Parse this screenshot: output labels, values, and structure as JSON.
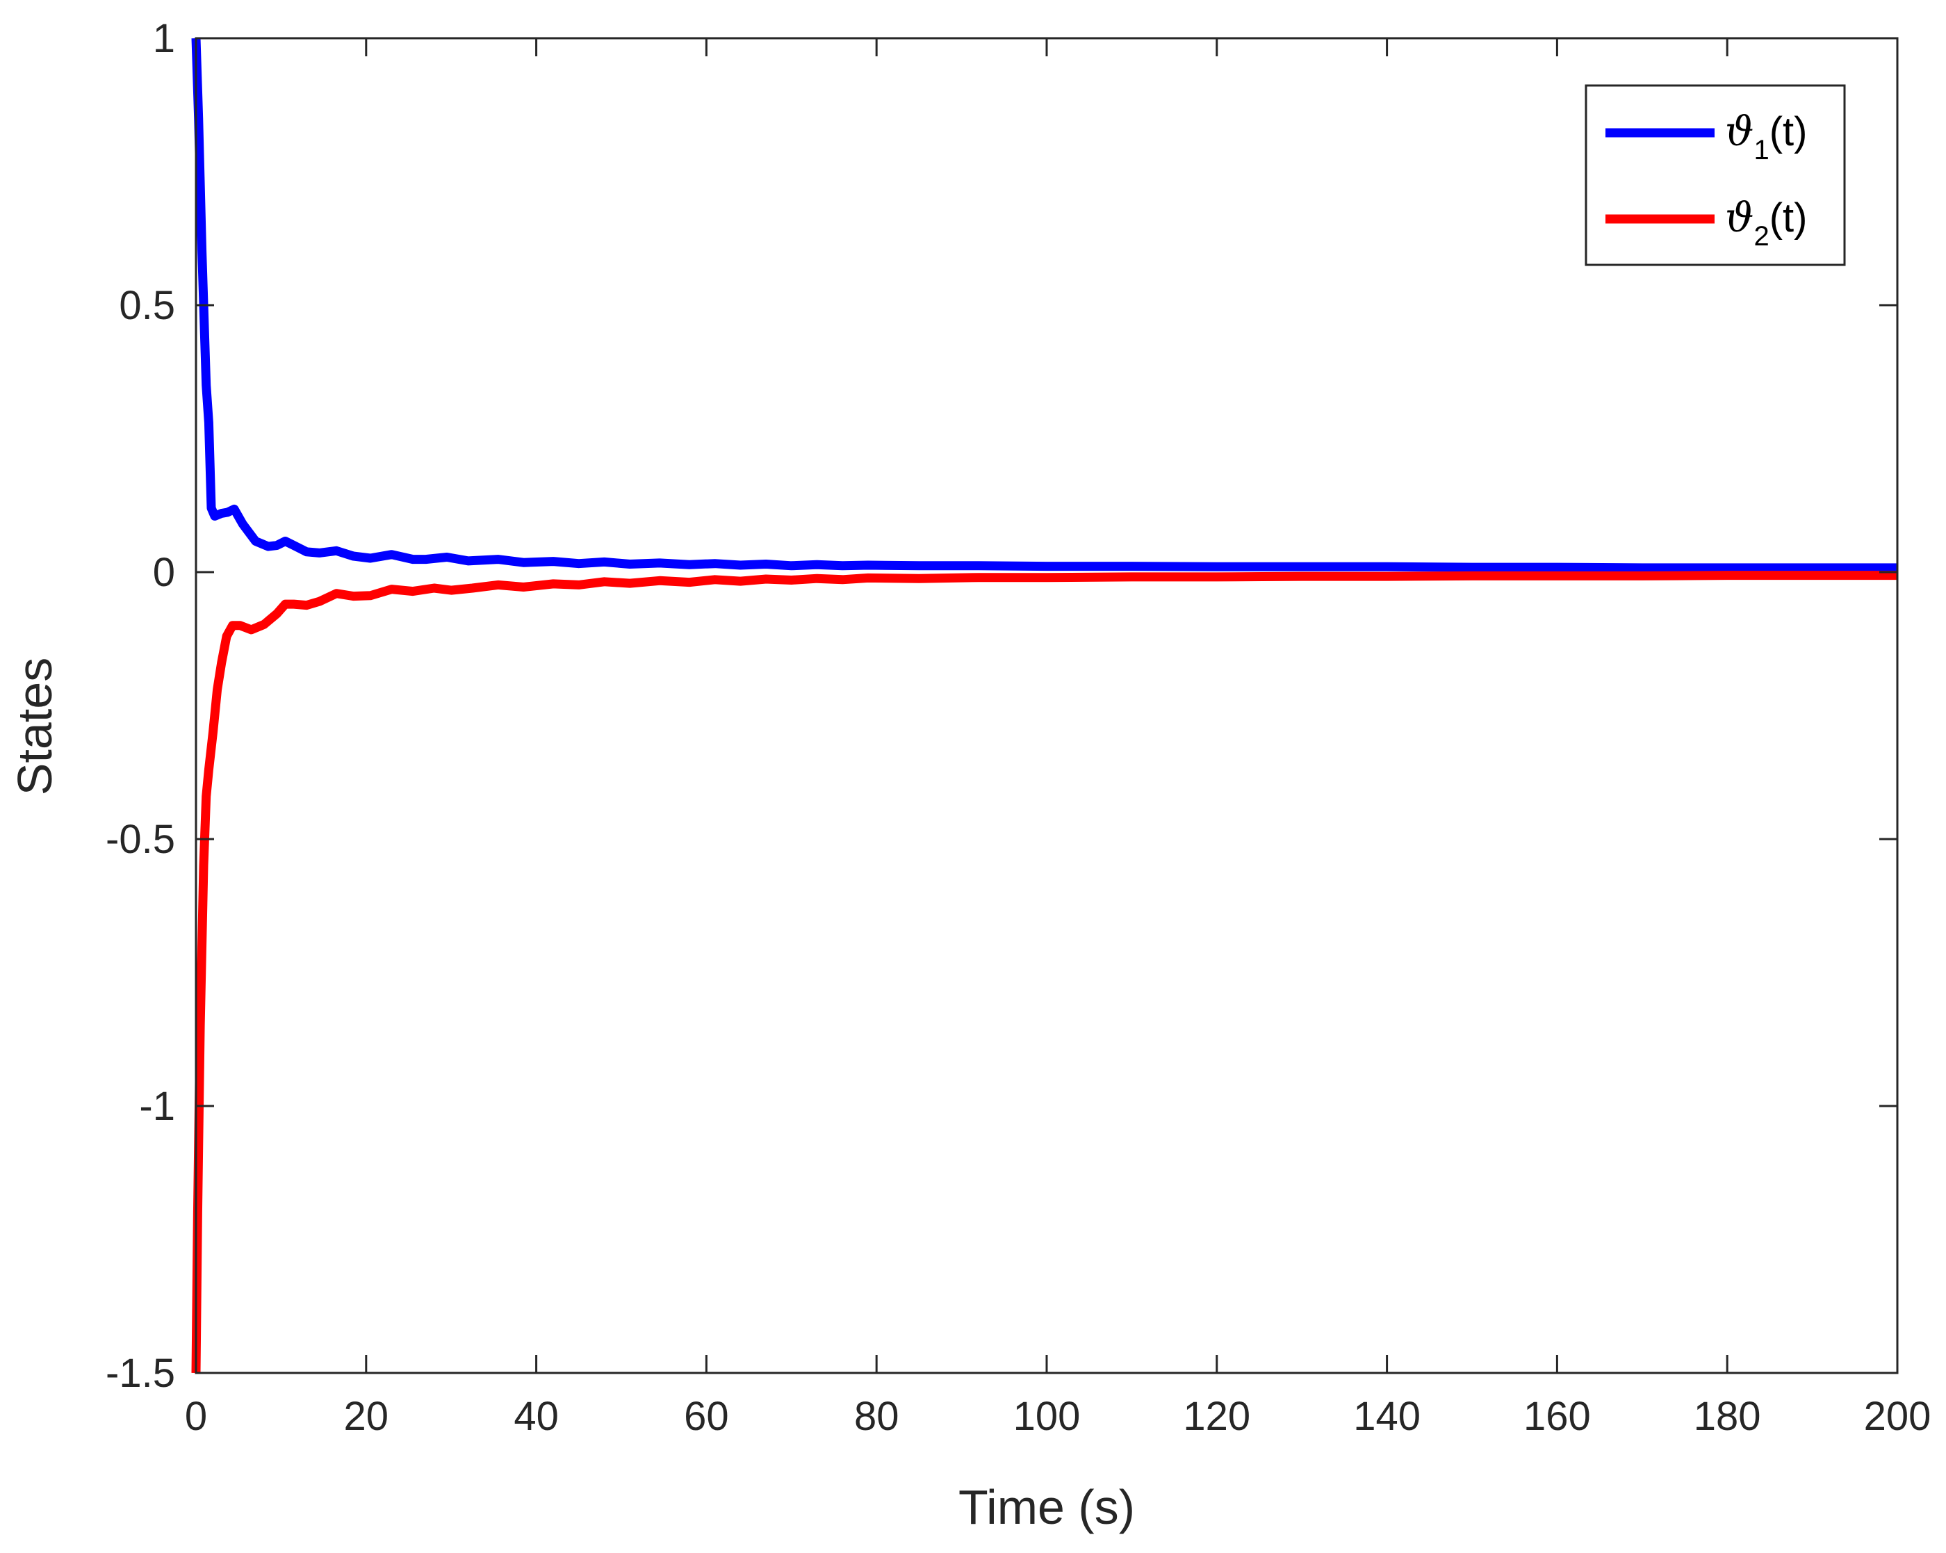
{
  "chart_data": {
    "type": "line",
    "title": "",
    "xlabel": "Time (s)",
    "ylabel": "States",
    "xlim": [
      0,
      200
    ],
    "ylim": [
      -1.5,
      1
    ],
    "x_ticks": [
      0,
      20,
      40,
      60,
      80,
      100,
      120,
      140,
      160,
      180,
      200
    ],
    "x_tick_labels": [
      "0",
      "20",
      "40",
      "60",
      "80",
      "100",
      "120",
      "140",
      "160",
      "180",
      "200"
    ],
    "y_ticks": [
      -1.5,
      -1,
      -0.5,
      0,
      0.5,
      1
    ],
    "y_tick_labels": [
      "-1.5",
      "-1",
      "-0.5",
      "0",
      "0.5",
      "1"
    ],
    "grid": false,
    "legend_position": "top-right",
    "series": [
      {
        "name": "ϑ1(t)",
        "legend_symbol": "ϑ",
        "legend_subscript": "1",
        "legend_suffix": "(t)",
        "color": "#0000ff",
        "points": [
          [
            0,
            1.0
          ],
          [
            0.3,
            0.85
          ],
          [
            0.7,
            0.6
          ],
          [
            1.2,
            0.35
          ],
          [
            1.5,
            0.28
          ],
          [
            1.8,
            0.12
          ],
          [
            2.2,
            0.105
          ],
          [
            3,
            0.11
          ],
          [
            3.7,
            0.112
          ],
          [
            4.5,
            0.118
          ],
          [
            5.5,
            0.09
          ],
          [
            7,
            0.058
          ],
          [
            8.5,
            0.048
          ],
          [
            9.5,
            0.05
          ],
          [
            10.5,
            0.058
          ],
          [
            11.5,
            0.05
          ],
          [
            13,
            0.038
          ],
          [
            14.5,
            0.036
          ],
          [
            16.5,
            0.04
          ],
          [
            18.5,
            0.03
          ],
          [
            20.5,
            0.026
          ],
          [
            23,
            0.033
          ],
          [
            25.5,
            0.024
          ],
          [
            27,
            0.024
          ],
          [
            29.5,
            0.028
          ],
          [
            32,
            0.021
          ],
          [
            35.5,
            0.024
          ],
          [
            38.5,
            0.018
          ],
          [
            42,
            0.02
          ],
          [
            45,
            0.016
          ],
          [
            48,
            0.019
          ],
          [
            51,
            0.015
          ],
          [
            54.5,
            0.017
          ],
          [
            58,
            0.014
          ],
          [
            61,
            0.016
          ],
          [
            64,
            0.013
          ],
          [
            67,
            0.015
          ],
          [
            70,
            0.012
          ],
          [
            73,
            0.014
          ],
          [
            76,
            0.012
          ],
          [
            79,
            0.013
          ],
          [
            85,
            0.012
          ],
          [
            92,
            0.012
          ],
          [
            100,
            0.011
          ],
          [
            110,
            0.011
          ],
          [
            120,
            0.01
          ],
          [
            130,
            0.01
          ],
          [
            140,
            0.01
          ],
          [
            150,
            0.009
          ],
          [
            160,
            0.009
          ],
          [
            170,
            0.008
          ],
          [
            180,
            0.008
          ],
          [
            190,
            0.008
          ],
          [
            200,
            0.008
          ]
        ]
      },
      {
        "name": "ϑ2(t)",
        "legend_symbol": "ϑ",
        "legend_subscript": "2",
        "legend_suffix": "(t)",
        "color": "#ff0000",
        "points": [
          [
            0,
            -1.5
          ],
          [
            0.2,
            -1.2
          ],
          [
            0.5,
            -0.85
          ],
          [
            0.9,
            -0.55
          ],
          [
            1.2,
            -0.42
          ],
          [
            1.5,
            -0.37
          ],
          [
            2,
            -0.3
          ],
          [
            2.5,
            -0.22
          ],
          [
            3,
            -0.17
          ],
          [
            3.6,
            -0.12
          ],
          [
            4.3,
            -0.1
          ],
          [
            5.2,
            -0.1
          ],
          [
            6.5,
            -0.108
          ],
          [
            8,
            -0.098
          ],
          [
            9.5,
            -0.078
          ],
          [
            10.5,
            -0.06
          ],
          [
            11.5,
            -0.06
          ],
          [
            13,
            -0.062
          ],
          [
            14.5,
            -0.055
          ],
          [
            16.5,
            -0.04
          ],
          [
            18.5,
            -0.045
          ],
          [
            20.5,
            -0.044
          ],
          [
            23,
            -0.032
          ],
          [
            25.5,
            -0.036
          ],
          [
            28,
            -0.03
          ],
          [
            30,
            -0.034
          ],
          [
            32.5,
            -0.03
          ],
          [
            35.5,
            -0.024
          ],
          [
            38.5,
            -0.028
          ],
          [
            42,
            -0.022
          ],
          [
            45,
            -0.024
          ],
          [
            48,
            -0.018
          ],
          [
            51,
            -0.021
          ],
          [
            54.5,
            -0.016
          ],
          [
            58,
            -0.019
          ],
          [
            61,
            -0.014
          ],
          [
            64,
            -0.017
          ],
          [
            67,
            -0.013
          ],
          [
            70,
            -0.015
          ],
          [
            73,
            -0.012
          ],
          [
            76,
            -0.014
          ],
          [
            79,
            -0.011
          ],
          [
            85,
            -0.012
          ],
          [
            92,
            -0.01
          ],
          [
            100,
            -0.01
          ],
          [
            110,
            -0.009
          ],
          [
            120,
            -0.009
          ],
          [
            130,
            -0.008
          ],
          [
            140,
            -0.008
          ],
          [
            150,
            -0.007
          ],
          [
            160,
            -0.007
          ],
          [
            170,
            -0.007
          ],
          [
            180,
            -0.006
          ],
          [
            190,
            -0.006
          ],
          [
            200,
            -0.006
          ]
        ]
      }
    ]
  }
}
